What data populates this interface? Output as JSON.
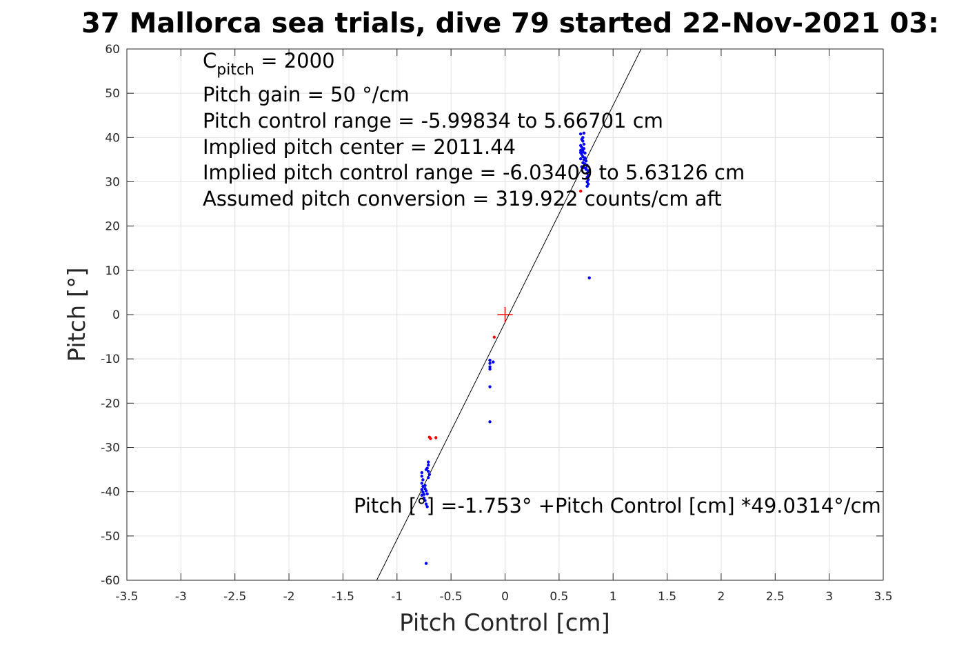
{
  "chart_data": {
    "type": "scatter",
    "title": "37 Mallorca sea trials, dive 79 started 22-Nov-2021 03:",
    "xlabel": "Pitch Control [cm]",
    "ylabel": "Pitch [°]",
    "xlim": [
      -3.5,
      3.5
    ],
    "ylim": [
      -60,
      60
    ],
    "xticks": [
      -3.5,
      -3,
      -2.5,
      -2,
      -1.5,
      -1,
      -0.5,
      0,
      0.5,
      1,
      1.5,
      2,
      2.5,
      3,
      3.5
    ],
    "xtick_labels": [
      "-3.5",
      "-3",
      "-2.5",
      "-2",
      "-1.5",
      "-1",
      "-0.5",
      "0",
      "0.5",
      "1",
      "1.5",
      "2",
      "2.5",
      "3",
      "3.5"
    ],
    "yticks": [
      -60,
      -50,
      -40,
      -30,
      -20,
      -10,
      0,
      10,
      20,
      30,
      40,
      50,
      60
    ],
    "ytick_labels": [
      "-60",
      "-50",
      "-40",
      "-30",
      "-20",
      "-10",
      "0",
      "10",
      "20",
      "30",
      "40",
      "50",
      "60"
    ],
    "grid": true,
    "fit_line": {
      "intercept": -1.753,
      "slope": 49.0314
    },
    "center_marker": {
      "x": 0,
      "y": 0,
      "color": "#ff0000"
    },
    "annotations": {
      "c_pitch_label": "C",
      "c_pitch_sub": "pitch",
      "c_pitch_value": " = 2000",
      "gain": "Pitch gain = 50 °/cm",
      "range": "Pitch control range = -5.99834 to 5.66701 cm",
      "center": "Implied pitch center = 2011.44",
      "implied_range": "Implied pitch control range = -6.03409 to 5.63126 cm",
      "conversion": "Assumed pitch conversion = 319.922 counts/cm aft",
      "fit_equation": "Pitch [°] =-1.753° +Pitch Control [cm] *49.0314°/cm"
    },
    "series": [
      {
        "color": "#0000ff",
        "points": [
          [
            0.7,
            40.8
          ],
          [
            0.72,
            40.0
          ],
          [
            0.72,
            39.2
          ],
          [
            0.73,
            38.5
          ],
          [
            0.7,
            38.2
          ],
          [
            0.71,
            37.8
          ],
          [
            0.73,
            37.5
          ],
          [
            0.7,
            37.1
          ],
          [
            0.72,
            36.8
          ],
          [
            0.74,
            36.5
          ],
          [
            0.71,
            36.2
          ],
          [
            0.72,
            35.7
          ],
          [
            0.7,
            35.2
          ],
          [
            0.73,
            35.0
          ],
          [
            0.75,
            34.7
          ],
          [
            0.72,
            34.3
          ],
          [
            0.74,
            34.0
          ],
          [
            0.76,
            33.7
          ],
          [
            0.71,
            33.4
          ],
          [
            0.73,
            33.2
          ],
          [
            0.75,
            32.8
          ],
          [
            0.77,
            32.5
          ],
          [
            0.76,
            32.0
          ],
          [
            0.77,
            31.5
          ],
          [
            0.76,
            31.0
          ],
          [
            0.77,
            30.5
          ],
          [
            0.76,
            30.0
          ],
          [
            0.77,
            29.5
          ],
          [
            0.76,
            29.0
          ],
          [
            0.74,
            35.4
          ],
          [
            0.75,
            33.1
          ],
          [
            0.7,
            36.6
          ],
          [
            0.71,
            39.6
          ],
          [
            0.73,
            41.0
          ],
          [
            0.72,
            37.3
          ],
          [
            0.78,
            8.3
          ],
          [
            -0.14,
            -10.3
          ],
          [
            -0.14,
            -11.0
          ],
          [
            -0.14,
            -11.8
          ],
          [
            -0.14,
            -12.3
          ],
          [
            -0.11,
            -10.7
          ],
          [
            -0.14,
            -16.3
          ],
          [
            -0.14,
            -24.2
          ],
          [
            -0.77,
            -35.7
          ],
          [
            -0.77,
            -36.5
          ],
          [
            -0.76,
            -37.3
          ],
          [
            -0.77,
            -38.1
          ],
          [
            -0.76,
            -38.8
          ],
          [
            -0.77,
            -39.5
          ],
          [
            -0.76,
            -40.1
          ],
          [
            -0.77,
            -40.8
          ],
          [
            -0.75,
            -41.4
          ],
          [
            -0.74,
            -42.0
          ],
          [
            -0.73,
            -42.8
          ],
          [
            -0.72,
            -43.4
          ],
          [
            -0.74,
            -38.6
          ],
          [
            -0.73,
            -39.8
          ],
          [
            -0.72,
            -40.5
          ],
          [
            -0.71,
            -33.3
          ],
          [
            -0.71,
            -34.0
          ],
          [
            -0.72,
            -34.7
          ],
          [
            -0.71,
            -35.4
          ],
          [
            -0.7,
            -36.1
          ],
          [
            -0.71,
            -36.8
          ],
          [
            -0.73,
            -35.0
          ],
          [
            -0.74,
            -39.3
          ],
          [
            -0.75,
            -40.6
          ],
          [
            -0.73,
            -56.2
          ]
        ]
      },
      {
        "color": "#ff0000",
        "points": [
          [
            -0.1,
            -5.1
          ],
          [
            -0.7,
            -27.7
          ],
          [
            -0.69,
            -28.0
          ],
          [
            -0.64,
            -27.8
          ],
          [
            0.7,
            27.9
          ]
        ]
      }
    ]
  }
}
